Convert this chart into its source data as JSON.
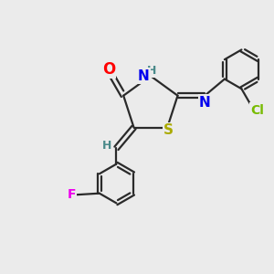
{
  "background_color": "#ebebeb",
  "bond_color": "#2a2a2a",
  "atom_colors": {
    "O": "#ff0000",
    "N": "#0000ee",
    "S": "#aaaa00",
    "F": "#ee00ee",
    "Cl": "#77bb00",
    "H_label": "#4a8a8a",
    "C": "#2a2a2a"
  },
  "figsize": [
    3.0,
    3.0
  ],
  "dpi": 100
}
